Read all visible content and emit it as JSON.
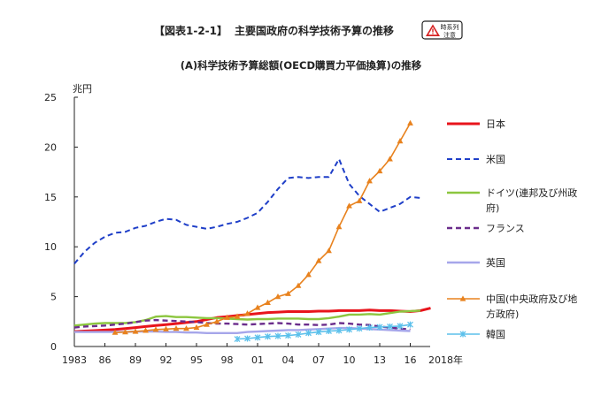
{
  "header": {
    "figure_no": "【図表1-2-1】",
    "title": "主要国政府の科学技術予算の推移",
    "badge_line1": "時系列",
    "badge_line2": "注意"
  },
  "chart_data": {
    "type": "line",
    "title": "(A)科学技術予算総額(OECD購買力平価換算)の推移",
    "ylabel": "兆円",
    "ylim": [
      0,
      25
    ],
    "yticks": [
      0,
      5,
      10,
      15,
      20,
      25
    ],
    "xlim": [
      1983,
      2018
    ],
    "xticks": [
      1983,
      1986,
      1989,
      1992,
      1995,
      1998,
      2001,
      2004,
      2007,
      2010,
      2013,
      2016
    ],
    "xtick_labels": [
      "1983",
      "86",
      "89",
      "92",
      "95",
      "98",
      "01",
      "04",
      "07",
      "10",
      "13",
      "16"
    ],
    "x_end_label": "2018年",
    "series": [
      {
        "name": "日本",
        "color": "#e8141c",
        "dash": "solid",
        "width": 3,
        "marker": "none",
        "x": [
          1983,
          1984,
          1985,
          1986,
          1987,
          1988,
          1989,
          1990,
          1991,
          1992,
          1993,
          1994,
          1995,
          1996,
          1997,
          1998,
          1999,
          2000,
          2001,
          2002,
          2003,
          2004,
          2005,
          2006,
          2007,
          2008,
          2009,
          2010,
          2011,
          2012,
          2013,
          2014,
          2015,
          2016,
          2017,
          2018
        ],
        "y": [
          1.5,
          1.55,
          1.6,
          1.65,
          1.7,
          1.8,
          1.9,
          2.0,
          2.1,
          2.2,
          2.3,
          2.4,
          2.5,
          2.7,
          2.9,
          3.0,
          3.1,
          3.2,
          3.3,
          3.4,
          3.45,
          3.5,
          3.5,
          3.5,
          3.55,
          3.55,
          3.6,
          3.6,
          3.6,
          3.65,
          3.6,
          3.6,
          3.55,
          3.5,
          3.6,
          3.85
        ]
      },
      {
        "name": "米国",
        "color": "#1f3fc8",
        "dash": "dashed",
        "width": 2,
        "marker": "none",
        "x": [
          1983,
          1984,
          1985,
          1986,
          1987,
          1988,
          1989,
          1990,
          1991,
          1992,
          1993,
          1994,
          1995,
          1996,
          1997,
          1998,
          1999,
          2000,
          2001,
          2002,
          2003,
          2004,
          2005,
          2006,
          2007,
          2008,
          2009,
          2010,
          2011,
          2012,
          2013,
          2014,
          2015,
          2016,
          2017
        ],
        "y": [
          8.3,
          9.5,
          10.4,
          11.0,
          11.4,
          11.5,
          11.9,
          12.1,
          12.5,
          12.8,
          12.7,
          12.2,
          12.0,
          11.8,
          12.0,
          12.3,
          12.5,
          12.9,
          13.4,
          14.5,
          15.8,
          16.9,
          17.0,
          16.9,
          17.0,
          17.0,
          18.8,
          16.3,
          15.1,
          14.3,
          13.5,
          13.9,
          14.3,
          15.0,
          14.9
        ]
      },
      {
        "name": "ドイツ(連邦及び州政府)",
        "color": "#8cc63f",
        "dash": "solid",
        "width": 2.4,
        "marker": "none",
        "x": [
          1983,
          1984,
          1985,
          1986,
          1987,
          1988,
          1989,
          1990,
          1991,
          1992,
          1993,
          1994,
          1995,
          1996,
          1997,
          1998,
          1999,
          2000,
          2001,
          2002,
          2003,
          2004,
          2005,
          2006,
          2007,
          2008,
          2009,
          2010,
          2011,
          2012,
          2013,
          2014,
          2015,
          2016,
          2017
        ],
        "y": [
          2.1,
          2.2,
          2.3,
          2.35,
          2.35,
          2.35,
          2.45,
          2.65,
          3.0,
          3.05,
          2.95,
          2.95,
          2.9,
          2.85,
          2.85,
          2.8,
          2.75,
          2.7,
          2.75,
          2.75,
          2.8,
          2.8,
          2.8,
          2.75,
          2.75,
          2.85,
          3.0,
          3.2,
          3.2,
          3.25,
          3.2,
          3.35,
          3.5,
          3.55,
          3.6
        ]
      },
      {
        "name": "フランス",
        "color": "#6b2d8c",
        "dash": "dashed",
        "width": 2.4,
        "marker": "none",
        "x": [
          1983,
          1984,
          1985,
          1986,
          1987,
          1988,
          1989,
          1990,
          1991,
          1992,
          1993,
          1994,
          1995,
          1996,
          1997,
          1998,
          1999,
          2000,
          2001,
          2002,
          2003,
          2004,
          2005,
          2006,
          2007,
          2008,
          2009,
          2010,
          2011,
          2012,
          2013,
          2014,
          2015,
          2016
        ],
        "y": [
          1.9,
          2.0,
          2.05,
          2.1,
          2.2,
          2.3,
          2.45,
          2.6,
          2.65,
          2.6,
          2.55,
          2.5,
          2.45,
          2.35,
          2.3,
          2.3,
          2.25,
          2.2,
          2.25,
          2.3,
          2.35,
          2.3,
          2.2,
          2.2,
          2.15,
          2.2,
          2.35,
          2.3,
          2.2,
          2.15,
          2.0,
          1.9,
          1.8,
          1.7
        ]
      },
      {
        "name": "英国",
        "color": "#a6a6ea",
        "dash": "solid",
        "width": 2.4,
        "marker": "none",
        "x": [
          1983,
          1984,
          1985,
          1986,
          1987,
          1988,
          1989,
          1990,
          1991,
          1992,
          1993,
          1994,
          1995,
          1996,
          1997,
          1998,
          1999,
          2000,
          2001,
          2002,
          2003,
          2004,
          2005,
          2006,
          2007,
          2008,
          2009,
          2010,
          2011,
          2012,
          2013,
          2014,
          2015,
          2016
        ],
        "y": [
          1.45,
          1.45,
          1.45,
          1.45,
          1.45,
          1.45,
          1.5,
          1.5,
          1.5,
          1.45,
          1.45,
          1.4,
          1.4,
          1.35,
          1.35,
          1.35,
          1.35,
          1.45,
          1.5,
          1.55,
          1.6,
          1.65,
          1.65,
          1.7,
          1.75,
          1.8,
          1.85,
          1.85,
          1.8,
          1.75,
          1.7,
          1.65,
          1.6,
          1.55
        ]
      },
      {
        "name": "中国(中央政府及び地方政府)",
        "color": "#e8821e",
        "dash": "solid",
        "width": 1.6,
        "marker": "triangle",
        "x": [
          1987,
          1988,
          1989,
          1990,
          1991,
          1992,
          1993,
          1994,
          1995,
          1996,
          1997,
          1998,
          1999,
          2000,
          2001,
          2002,
          2003,
          2004,
          2005,
          2006,
          2007,
          2008,
          2009,
          2010,
          2011,
          2012,
          2013,
          2014,
          2015,
          2016
        ],
        "y": [
          1.4,
          1.45,
          1.5,
          1.6,
          1.7,
          1.75,
          1.8,
          1.8,
          1.9,
          2.2,
          2.5,
          2.9,
          3.0,
          3.3,
          3.9,
          4.4,
          5.0,
          5.3,
          6.1,
          7.2,
          8.6,
          9.6,
          12.0,
          14.1,
          14.6,
          16.6,
          17.6,
          18.8,
          20.6,
          22.4
        ]
      },
      {
        "name": "韓国",
        "color": "#5bc0eb",
        "dash": "solid",
        "width": 1.6,
        "marker": "x",
        "x": [
          1999,
          2000,
          2001,
          2002,
          2003,
          2004,
          2005,
          2006,
          2007,
          2008,
          2009,
          2010,
          2011,
          2012,
          2013,
          2014,
          2015,
          2016
        ],
        "y": [
          0.75,
          0.8,
          0.9,
          1.0,
          1.05,
          1.1,
          1.2,
          1.35,
          1.45,
          1.55,
          1.6,
          1.7,
          1.8,
          1.9,
          1.95,
          2.0,
          2.05,
          2.2
        ]
      }
    ]
  }
}
